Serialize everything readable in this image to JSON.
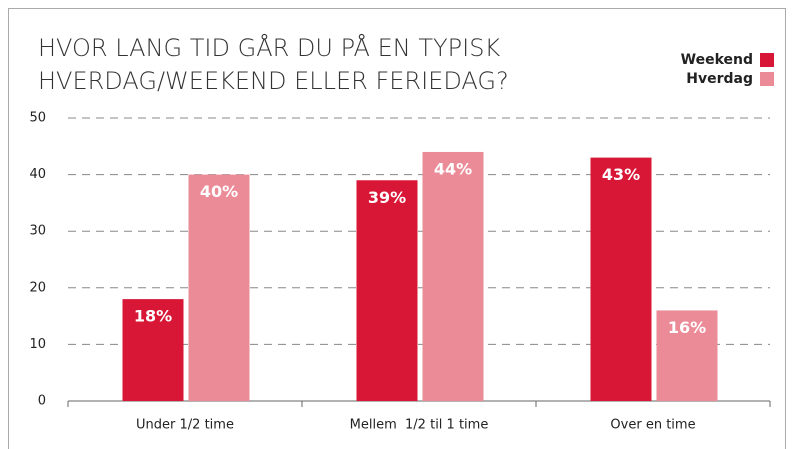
{
  "chart_data": {
    "type": "bar",
    "title": [
      "HVOR LANG TID GÅR DU PÅ EN TYPISK",
      "HVERDAG/WEEKEND ELLER FERIEDAG?"
    ],
    "categories": [
      "Under 1/2 time",
      "Mellem  1/2 til 1 time",
      "Over en time"
    ],
    "series": [
      {
        "name": "Weekend",
        "color": "#d81636",
        "values": [
          18,
          39,
          43
        ],
        "value_labels": [
          "18%",
          "39%",
          "43%"
        ]
      },
      {
        "name": "Hverdag",
        "color": "#eb8b98",
        "values": [
          40,
          44,
          16
        ],
        "value_labels": [
          "40%",
          "44%",
          "16%"
        ]
      }
    ],
    "ylim": [
      0,
      50
    ],
    "yticks": [
      0,
      10,
      20,
      30,
      40,
      50
    ],
    "grid": true,
    "legend": "top-right"
  }
}
